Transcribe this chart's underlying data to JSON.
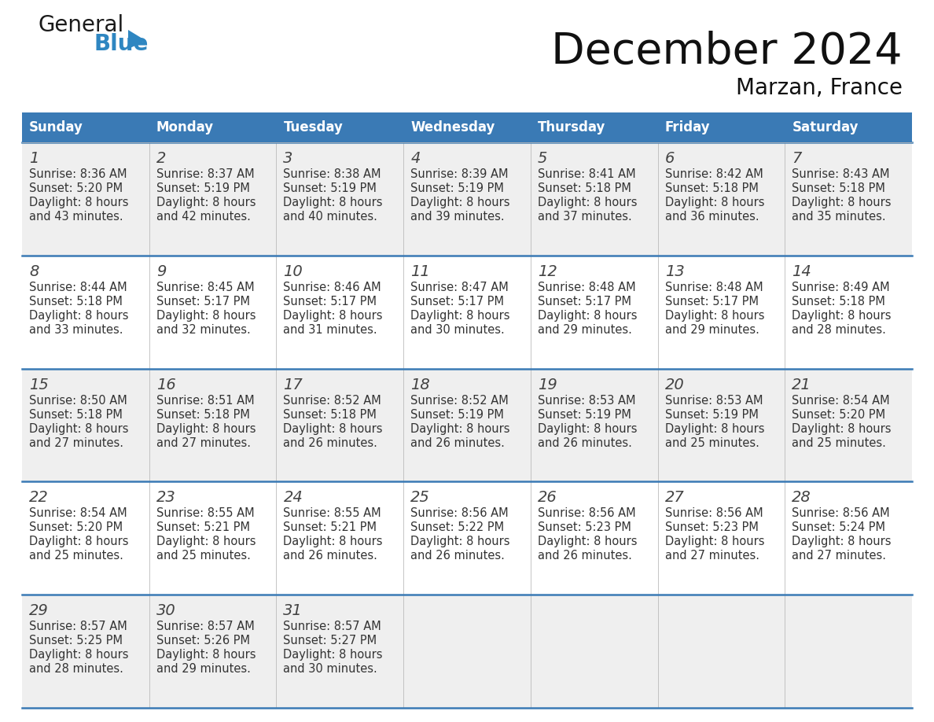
{
  "title": "December 2024",
  "subtitle": "Marzan, France",
  "days_of_week": [
    "Sunday",
    "Monday",
    "Tuesday",
    "Wednesday",
    "Thursday",
    "Friday",
    "Saturday"
  ],
  "header_bg": "#3A7AB5",
  "header_text": "#FFFFFF",
  "bg_color": "#FFFFFF",
  "row_bg_odd": "#EFEFEF",
  "row_bg_even": "#FFFFFF",
  "separator_color": "#3A7AB5",
  "text_color": "#333333",
  "date_color": "#444444",
  "logo_general_color": "#1A1A1A",
  "logo_blue_color": "#2E86C1",
  "triangle_color": "#2E86C1",
  "calendar": [
    [
      {
        "day": "1",
        "sunrise": "8:36 AM",
        "sunset": "5:20 PM",
        "dl_line1": "Daylight: 8 hours",
        "dl_line2": "and 43 minutes."
      },
      {
        "day": "2",
        "sunrise": "8:37 AM",
        "sunset": "5:19 PM",
        "dl_line1": "Daylight: 8 hours",
        "dl_line2": "and 42 minutes."
      },
      {
        "day": "3",
        "sunrise": "8:38 AM",
        "sunset": "5:19 PM",
        "dl_line1": "Daylight: 8 hours",
        "dl_line2": "and 40 minutes."
      },
      {
        "day": "4",
        "sunrise": "8:39 AM",
        "sunset": "5:19 PM",
        "dl_line1": "Daylight: 8 hours",
        "dl_line2": "and 39 minutes."
      },
      {
        "day": "5",
        "sunrise": "8:41 AM",
        "sunset": "5:18 PM",
        "dl_line1": "Daylight: 8 hours",
        "dl_line2": "and 37 minutes."
      },
      {
        "day": "6",
        "sunrise": "8:42 AM",
        "sunset": "5:18 PM",
        "dl_line1": "Daylight: 8 hours",
        "dl_line2": "and 36 minutes."
      },
      {
        "day": "7",
        "sunrise": "8:43 AM",
        "sunset": "5:18 PM",
        "dl_line1": "Daylight: 8 hours",
        "dl_line2": "and 35 minutes."
      }
    ],
    [
      {
        "day": "8",
        "sunrise": "8:44 AM",
        "sunset": "5:18 PM",
        "dl_line1": "Daylight: 8 hours",
        "dl_line2": "and 33 minutes."
      },
      {
        "day": "9",
        "sunrise": "8:45 AM",
        "sunset": "5:17 PM",
        "dl_line1": "Daylight: 8 hours",
        "dl_line2": "and 32 minutes."
      },
      {
        "day": "10",
        "sunrise": "8:46 AM",
        "sunset": "5:17 PM",
        "dl_line1": "Daylight: 8 hours",
        "dl_line2": "and 31 minutes."
      },
      {
        "day": "11",
        "sunrise": "8:47 AM",
        "sunset": "5:17 PM",
        "dl_line1": "Daylight: 8 hours",
        "dl_line2": "and 30 minutes."
      },
      {
        "day": "12",
        "sunrise": "8:48 AM",
        "sunset": "5:17 PM",
        "dl_line1": "Daylight: 8 hours",
        "dl_line2": "and 29 minutes."
      },
      {
        "day": "13",
        "sunrise": "8:48 AM",
        "sunset": "5:17 PM",
        "dl_line1": "Daylight: 8 hours",
        "dl_line2": "and 29 minutes."
      },
      {
        "day": "14",
        "sunrise": "8:49 AM",
        "sunset": "5:18 PM",
        "dl_line1": "Daylight: 8 hours",
        "dl_line2": "and 28 minutes."
      }
    ],
    [
      {
        "day": "15",
        "sunrise": "8:50 AM",
        "sunset": "5:18 PM",
        "dl_line1": "Daylight: 8 hours",
        "dl_line2": "and 27 minutes."
      },
      {
        "day": "16",
        "sunrise": "8:51 AM",
        "sunset": "5:18 PM",
        "dl_line1": "Daylight: 8 hours",
        "dl_line2": "and 27 minutes."
      },
      {
        "day": "17",
        "sunrise": "8:52 AM",
        "sunset": "5:18 PM",
        "dl_line1": "Daylight: 8 hours",
        "dl_line2": "and 26 minutes."
      },
      {
        "day": "18",
        "sunrise": "8:52 AM",
        "sunset": "5:19 PM",
        "dl_line1": "Daylight: 8 hours",
        "dl_line2": "and 26 minutes."
      },
      {
        "day": "19",
        "sunrise": "8:53 AM",
        "sunset": "5:19 PM",
        "dl_line1": "Daylight: 8 hours",
        "dl_line2": "and 26 minutes."
      },
      {
        "day": "20",
        "sunrise": "8:53 AM",
        "sunset": "5:19 PM",
        "dl_line1": "Daylight: 8 hours",
        "dl_line2": "and 25 minutes."
      },
      {
        "day": "21",
        "sunrise": "8:54 AM",
        "sunset": "5:20 PM",
        "dl_line1": "Daylight: 8 hours",
        "dl_line2": "and 25 minutes."
      }
    ],
    [
      {
        "day": "22",
        "sunrise": "8:54 AM",
        "sunset": "5:20 PM",
        "dl_line1": "Daylight: 8 hours",
        "dl_line2": "and 25 minutes."
      },
      {
        "day": "23",
        "sunrise": "8:55 AM",
        "sunset": "5:21 PM",
        "dl_line1": "Daylight: 8 hours",
        "dl_line2": "and 25 minutes."
      },
      {
        "day": "24",
        "sunrise": "8:55 AM",
        "sunset": "5:21 PM",
        "dl_line1": "Daylight: 8 hours",
        "dl_line2": "and 26 minutes."
      },
      {
        "day": "25",
        "sunrise": "8:56 AM",
        "sunset": "5:22 PM",
        "dl_line1": "Daylight: 8 hours",
        "dl_line2": "and 26 minutes."
      },
      {
        "day": "26",
        "sunrise": "8:56 AM",
        "sunset": "5:23 PM",
        "dl_line1": "Daylight: 8 hours",
        "dl_line2": "and 26 minutes."
      },
      {
        "day": "27",
        "sunrise": "8:56 AM",
        "sunset": "5:23 PM",
        "dl_line1": "Daylight: 8 hours",
        "dl_line2": "and 27 minutes."
      },
      {
        "day": "28",
        "sunrise": "8:56 AM",
        "sunset": "5:24 PM",
        "dl_line1": "Daylight: 8 hours",
        "dl_line2": "and 27 minutes."
      }
    ],
    [
      {
        "day": "29",
        "sunrise": "8:57 AM",
        "sunset": "5:25 PM",
        "dl_line1": "Daylight: 8 hours",
        "dl_line2": "and 28 minutes."
      },
      {
        "day": "30",
        "sunrise": "8:57 AM",
        "sunset": "5:26 PM",
        "dl_line1": "Daylight: 8 hours",
        "dl_line2": "and 29 minutes."
      },
      {
        "day": "31",
        "sunrise": "8:57 AM",
        "sunset": "5:27 PM",
        "dl_line1": "Daylight: 8 hours",
        "dl_line2": "and 30 minutes."
      },
      null,
      null,
      null,
      null
    ]
  ]
}
